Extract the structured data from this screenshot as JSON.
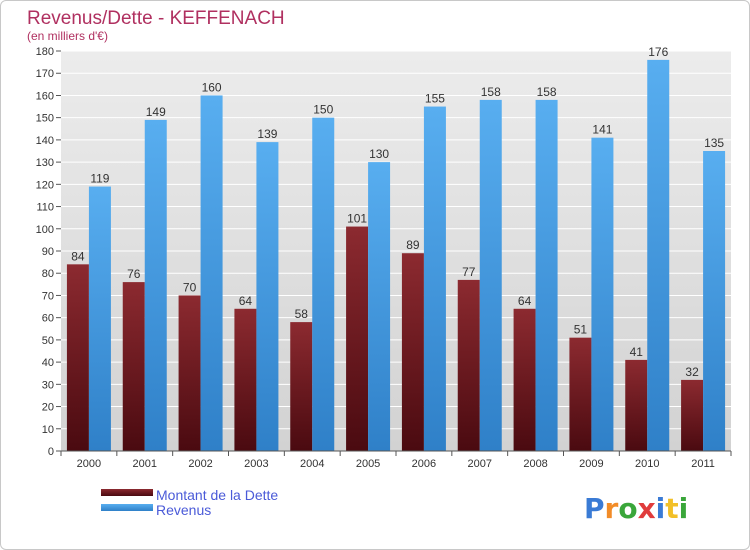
{
  "chart_data": {
    "type": "bar",
    "title": "Revenus/Dette - KEFFENACH",
    "subtitle": "(en milliers d'€)",
    "categories": [
      "2000",
      "2001",
      "2002",
      "2003",
      "2004",
      "2005",
      "2006",
      "2007",
      "2008",
      "2009",
      "2010",
      "2011"
    ],
    "series": [
      {
        "name": "Montant de la Dette",
        "values": [
          84,
          76,
          70,
          64,
          58,
          101,
          89,
          77,
          64,
          51,
          41,
          32
        ],
        "color": "#7a1c24"
      },
      {
        "name": "Revenus",
        "values": [
          119,
          149,
          160,
          139,
          150,
          130,
          155,
          158,
          158,
          141,
          176,
          135
        ],
        "color": "#4ea3e4"
      }
    ],
    "ylim": [
      0,
      180
    ],
    "yticks": [
      0,
      10,
      20,
      30,
      40,
      50,
      60,
      70,
      80,
      90,
      100,
      110,
      120,
      130,
      140,
      150,
      160,
      170,
      180
    ],
    "grid": true,
    "legend_position": "bottom-left",
    "background_color": "#dcdcdc"
  },
  "logo": {
    "letters": [
      "P",
      "r",
      "o",
      "x",
      "i",
      "t",
      "i"
    ],
    "colors": [
      "#3a7bd5",
      "#f28c28",
      "#3aa63a",
      "#e03c3c",
      "#3a7bd5",
      "#f2c028",
      "#3aa63a"
    ]
  }
}
